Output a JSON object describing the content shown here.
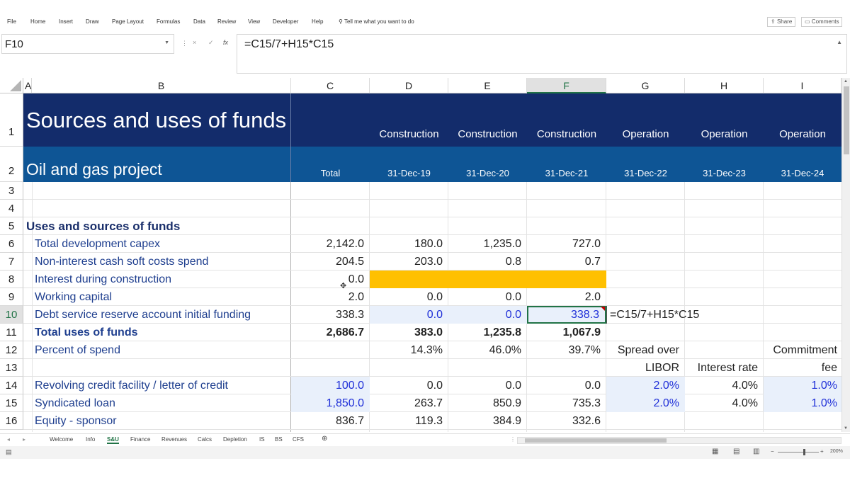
{
  "ribbon": {
    "tabs": [
      "File",
      "Home",
      "Insert",
      "Draw",
      "Page Layout",
      "Formulas",
      "Data",
      "Review",
      "View",
      "Developer",
      "Help"
    ],
    "tell_me": "Tell me what you want to do",
    "share": "Share",
    "comments": "Comments"
  },
  "formula_bar": {
    "name_box": "F10",
    "cancel": "×",
    "enter": "✓",
    "fx": "fx",
    "formula": "=C15/7+H15*C15"
  },
  "columns": [
    "A",
    "B",
    "C",
    "D",
    "E",
    "F",
    "G",
    "H",
    "I"
  ],
  "rows": [
    "1",
    "2",
    "3",
    "4",
    "5",
    "6",
    "7",
    "8",
    "9",
    "10",
    "11",
    "12",
    "13",
    "14",
    "15",
    "16"
  ],
  "sheet": {
    "title": "Sources and uses of funds",
    "subtitle": "Oil and gas project",
    "phases": [
      "Construction",
      "Construction",
      "Construction",
      "Operation",
      "Operation",
      "Operation"
    ],
    "total_label": "Total",
    "dates": [
      "31-Dec-19",
      "31-Dec-20",
      "31-Dec-21",
      "31-Dec-22",
      "31-Dec-23",
      "31-Dec-24"
    ],
    "section_heading": "Uses and sources of funds",
    "r6": {
      "label": "Total development capex",
      "c": "2,142.0",
      "d": "180.0",
      "e": "1,235.0",
      "f": "727.0"
    },
    "r7": {
      "label": "Non-interest cash soft costs spend",
      "c": "204.5",
      "d": "203.0",
      "e": "0.8",
      "f": "0.7"
    },
    "r8": {
      "label": "Interest during construction",
      "c": "0.0"
    },
    "r9": {
      "label": "Working capital",
      "c": "2.0",
      "d": "0.0",
      "e": "0.0",
      "f": "2.0"
    },
    "r10": {
      "label": "Debt service reserve account initial funding",
      "c": "338.3",
      "d": "0.0",
      "e": "0.0",
      "f": "338.3",
      "g": "=C15/7+H15*C15"
    },
    "r11": {
      "label": "Total uses of funds",
      "c": "2,686.7",
      "d": "383.0",
      "e": "1,235.8",
      "f": "1,067.9"
    },
    "r12": {
      "label": "Percent of spend",
      "d": "14.3%",
      "e": "46.0%",
      "f": "39.7%",
      "g": "Spread over",
      "i": "Commitment"
    },
    "r13": {
      "g": "LIBOR",
      "h": "Interest rate",
      "i": "fee"
    },
    "r14": {
      "label": "Revolving credit facility / letter of credit",
      "c": "100.0",
      "d": "0.0",
      "e": "0.0",
      "f": "0.0",
      "g": "2.0%",
      "h": "4.0%",
      "i": "1.0%"
    },
    "r15": {
      "label": "Syndicated loan",
      "c": "1,850.0",
      "d": "263.7",
      "e": "850.9",
      "f": "735.3",
      "g": "2.0%",
      "h": "4.0%",
      "i": "1.0%"
    },
    "r16": {
      "label": "Equity - sponsor",
      "c": "836.7",
      "d": "119.3",
      "e": "384.9",
      "f": "332.6"
    }
  },
  "sheet_tabs": [
    "Welcome",
    "Info",
    "S&U",
    "Finance",
    "Revenues",
    "Calcs",
    "Depletion",
    "IS",
    "BS",
    "CFS"
  ],
  "active_tab": "S&U",
  "status": {
    "zoom": "200%"
  },
  "colors": {
    "dark_header": "#132c6b",
    "mid_header": "#0e5595",
    "input_fill": "#e9f0fb",
    "highlight": "#ffc000",
    "input_text": "#1f2fd8"
  }
}
